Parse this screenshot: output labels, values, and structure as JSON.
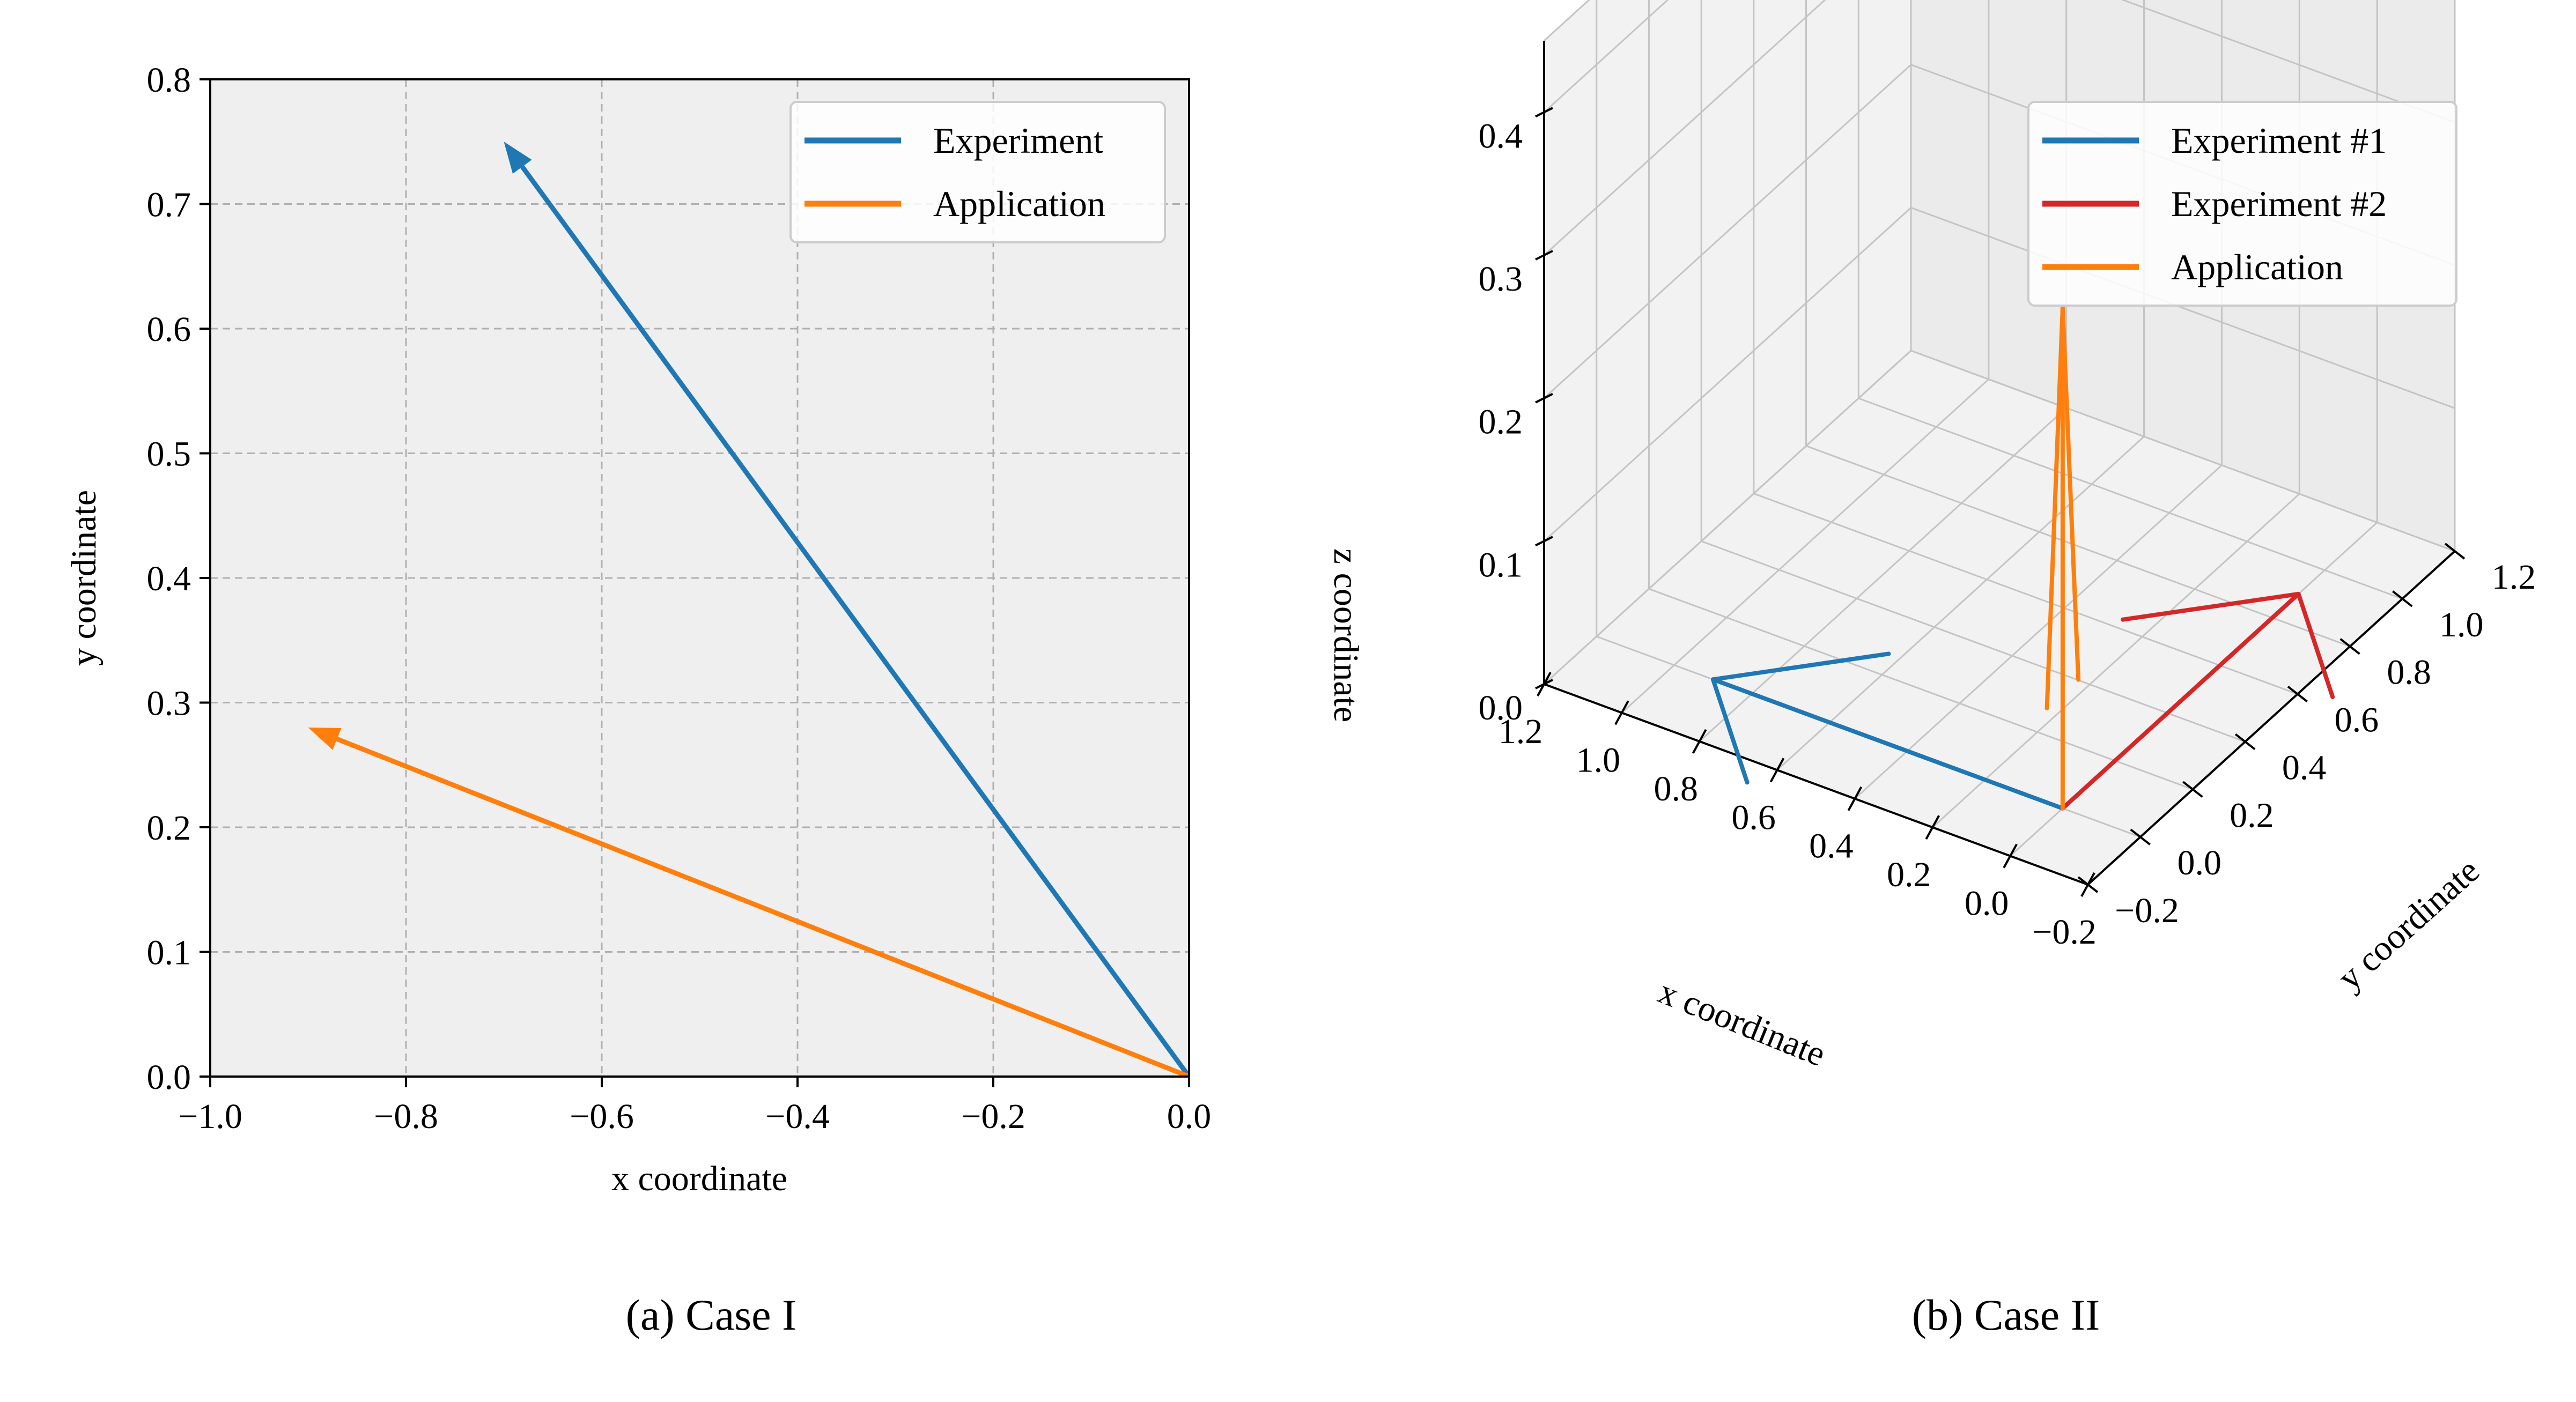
{
  "panels": {
    "a": {
      "caption": "(a) Case I"
    },
    "b": {
      "caption": "(b) Case II"
    }
  },
  "colors": {
    "blue": "#1f77b4",
    "orange": "#ff7f0e",
    "red": "#d62728",
    "plot_bg": "#efefef",
    "grid": "#b0b0b0"
  },
  "chart_data": [
    {
      "type": "line",
      "subtype": "quiver-2d",
      "title": "",
      "xlabel": "x coordinate",
      "ylabel": "y coordinate",
      "xlim": [
        -1.0,
        0.0
      ],
      "ylim": [
        0.0,
        0.8
      ],
      "xticks": [
        -1.0,
        -0.8,
        -0.6,
        -0.4,
        -0.2,
        0.0
      ],
      "xtick_labels": [
        "−1.0",
        "−0.8",
        "−0.6",
        "−0.4",
        "−0.2",
        "0.0"
      ],
      "yticks": [
        0.0,
        0.1,
        0.2,
        0.3,
        0.4,
        0.5,
        0.6,
        0.7,
        0.8
      ],
      "ytick_labels": [
        "0.0",
        "0.1",
        "0.2",
        "0.3",
        "0.4",
        "0.5",
        "0.6",
        "0.7",
        "0.8"
      ],
      "grid": true,
      "grid_style": "dashed",
      "legend_position": "top-right",
      "series": [
        {
          "name": "Experiment",
          "color": "#1f77b4",
          "from": [
            0.0,
            0.0
          ],
          "to": [
            -0.7,
            0.75
          ]
        },
        {
          "name": "Application",
          "color": "#ff7f0e",
          "from": [
            0.0,
            0.0
          ],
          "to": [
            -0.9,
            0.28
          ]
        }
      ]
    },
    {
      "type": "line",
      "subtype": "quiver-3d",
      "title": "",
      "xlabel": "x coordinate",
      "ylabel": "y coordinate",
      "zlabel": "z coordinate",
      "xlim": [
        -0.2,
        1.2
      ],
      "ylim": [
        -0.2,
        1.2
      ],
      "zlim": [
        0.0,
        0.45
      ],
      "xtick_labels": [
        "−0.2",
        "0.0",
        "0.2",
        "0.4",
        "0.6",
        "0.8",
        "1.0",
        "1.2"
      ],
      "ytick_labels": [
        "−0.2",
        "0.0",
        "0.2",
        "0.4",
        "0.6",
        "0.8",
        "1.0",
        "1.2"
      ],
      "ztick_labels": [
        "0.0",
        "0.1",
        "0.2",
        "0.3",
        "0.4"
      ],
      "grid": true,
      "legend_position": "top-right",
      "series": [
        {
          "name": "Experiment #1",
          "color": "#1f77b4",
          "from": [
            0.0,
            0.0,
            0.0
          ],
          "to": [
            0.9,
            0.0,
            0.0
          ]
        },
        {
          "name": "Experiment #2",
          "color": "#d62728",
          "from": [
            0.0,
            0.0,
            0.0
          ],
          "to": [
            0.0,
            0.9,
            0.0
          ]
        },
        {
          "name": "Application",
          "color": "#ff7f0e",
          "from": [
            0.0,
            0.0,
            0.0
          ],
          "to": [
            0.0,
            0.0,
            0.35
          ]
        }
      ]
    }
  ]
}
